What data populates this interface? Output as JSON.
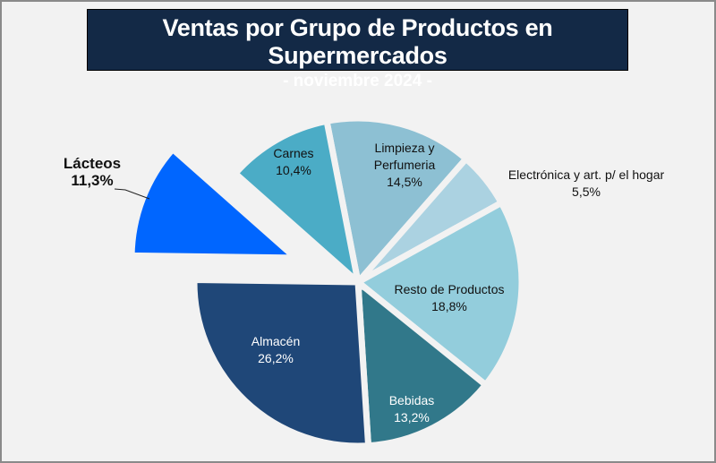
{
  "chart_data": {
    "type": "pie",
    "title": "Ventas por Grupo de Productos en Supermercados",
    "subtitle": "- noviembre 2024 -",
    "slices": [
      {
        "label": "Limpieza y Perfumeria",
        "lines": [
          "Limpieza y",
          "Perfumeria"
        ],
        "value": 14.5,
        "value_label": "14,5%",
        "color": "#8dc0d3",
        "exploded": false
      },
      {
        "label": "Electrónica y art. p/ el hogar",
        "lines": [
          "Electrónica y art. p/ el hogar"
        ],
        "value": 5.5,
        "value_label": "5,5%",
        "color": "#abd2e1",
        "exploded": false
      },
      {
        "label": "Resto de Productos",
        "lines": [
          "Resto de Productos"
        ],
        "value": 18.8,
        "value_label": "18,8%",
        "color": "#93cddc",
        "exploded": false
      },
      {
        "label": "Bebidas",
        "lines": [
          "Bebidas"
        ],
        "value": 13.2,
        "value_label": "13,2%",
        "color": "#31788a",
        "exploded": false
      },
      {
        "label": "Almacén",
        "lines": [
          "Almacén"
        ],
        "value": 26.2,
        "value_label": "26,2%",
        "color": "#1f4778",
        "exploded": false
      },
      {
        "label": "Lácteos",
        "lines": [
          "Lácteos"
        ],
        "value": 11.3,
        "value_label": "11,3%",
        "color": "#0066ff",
        "exploded": true
      },
      {
        "label": "Carnes",
        "lines": [
          "Carnes"
        ],
        "value": 10.4,
        "value_label": "10,4%",
        "color": "#4bacc6",
        "exploded": false
      }
    ]
  }
}
